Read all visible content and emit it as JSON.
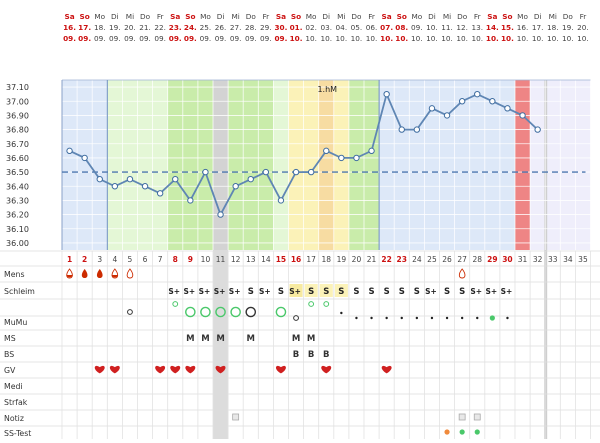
{
  "columns": [
    {
      "n": "1",
      "wd": "Sa",
      "d": "16.",
      "m": "09.",
      "we": true
    },
    {
      "n": "2",
      "wd": "So",
      "d": "17.",
      "m": "09.",
      "we": true
    },
    {
      "n": "3",
      "wd": "Mo",
      "d": "18.",
      "m": "09.",
      "we": false
    },
    {
      "n": "4",
      "wd": "Di",
      "d": "19.",
      "m": "09.",
      "we": false
    },
    {
      "n": "5",
      "wd": "Mi",
      "d": "20.",
      "m": "09.",
      "we": false
    },
    {
      "n": "6",
      "wd": "Do",
      "d": "21.",
      "m": "09.",
      "we": false
    },
    {
      "n": "7",
      "wd": "Fr",
      "d": "22.",
      "m": "09.",
      "we": false
    },
    {
      "n": "8",
      "wd": "Sa",
      "d": "23.",
      "m": "09.",
      "we": true
    },
    {
      "n": "9",
      "wd": "So",
      "d": "24.",
      "m": "09.",
      "we": true
    },
    {
      "n": "10",
      "wd": "Mo",
      "d": "25.",
      "m": "09.",
      "we": false
    },
    {
      "n": "11",
      "wd": "Di",
      "d": "26.",
      "m": "09.",
      "we": false
    },
    {
      "n": "12",
      "wd": "Mi",
      "d": "27.",
      "m": "09.",
      "we": false
    },
    {
      "n": "13",
      "wd": "Do",
      "d": "28.",
      "m": "09.",
      "we": false
    },
    {
      "n": "14",
      "wd": "Fr",
      "d": "29.",
      "m": "09.",
      "we": false
    },
    {
      "n": "15",
      "wd": "Sa",
      "d": "30.",
      "m": "09.",
      "we": true
    },
    {
      "n": "16",
      "wd": "So",
      "d": "01.",
      "m": "10.",
      "we": true
    },
    {
      "n": "17",
      "wd": "Mo",
      "d": "02.",
      "m": "10.",
      "we": false
    },
    {
      "n": "18",
      "wd": "Di",
      "d": "03.",
      "m": "10.",
      "we": false
    },
    {
      "n": "19",
      "wd": "Mi",
      "d": "04.",
      "m": "10.",
      "we": false
    },
    {
      "n": "20",
      "wd": "Do",
      "d": "05.",
      "m": "10.",
      "we": false
    },
    {
      "n": "21",
      "wd": "Fr",
      "d": "06.",
      "m": "10.",
      "we": false
    },
    {
      "n": "22",
      "wd": "Sa",
      "d": "07.",
      "m": "10.",
      "we": true
    },
    {
      "n": "23",
      "wd": "So",
      "d": "08.",
      "m": "10.",
      "we": true
    },
    {
      "n": "24",
      "wd": "Mo",
      "d": "09.",
      "m": "10.",
      "we": false
    },
    {
      "n": "25",
      "wd": "Di",
      "d": "10.",
      "m": "10.",
      "we": false
    },
    {
      "n": "26",
      "wd": "Mi",
      "d": "11.",
      "m": "10.",
      "we": false
    },
    {
      "n": "27",
      "wd": "Do",
      "d": "12.",
      "m": "10.",
      "we": false
    },
    {
      "n": "28",
      "wd": "Fr",
      "d": "13.",
      "m": "10.",
      "we": false
    },
    {
      "n": "29",
      "wd": "Sa",
      "d": "14.",
      "m": "10.",
      "we": true
    },
    {
      "n": "30",
      "wd": "So",
      "d": "15.",
      "m": "10.",
      "we": true
    },
    {
      "n": "31",
      "wd": "Mo",
      "d": "16.",
      "m": "10.",
      "we": false
    },
    {
      "n": "32",
      "wd": "Di",
      "d": "17.",
      "m": "10.",
      "we": false
    },
    {
      "n": "33",
      "wd": "Mi",
      "d": "18.",
      "m": "10.",
      "we": false
    },
    {
      "n": "34",
      "wd": "Do",
      "d": "19.",
      "m": "10.",
      "we": false
    },
    {
      "n": "35",
      "wd": "Fr",
      "d": "20.",
      "m": "10.",
      "we": false
    }
  ],
  "chart_data": {
    "type": "line",
    "title": "",
    "xlabel": "",
    "ylabel": "",
    "ylim": [
      35.95,
      37.15
    ],
    "y_ticks": [
      "37.10",
      "37.00",
      "36.90",
      "36.80",
      "36.70",
      "36.60",
      "36.50",
      "36.40",
      "36.30",
      "36.20",
      "36.10",
      "36.00"
    ],
    "x": [
      1,
      2,
      3,
      4,
      5,
      6,
      7,
      8,
      9,
      10,
      11,
      12,
      13,
      14,
      15,
      16,
      17,
      18,
      19,
      20,
      21,
      22,
      23,
      24,
      25,
      26,
      27,
      28,
      29,
      30,
      31,
      32
    ],
    "series": [
      {
        "values": [
          36.65,
          36.6,
          36.45,
          36.4,
          36.45,
          36.4,
          36.35,
          36.45,
          36.3,
          36.5,
          36.2,
          36.4,
          36.45,
          36.5,
          36.3,
          36.5,
          36.5,
          36.65,
          36.6,
          36.6,
          36.65,
          37.05,
          36.8,
          36.8,
          36.95,
          36.9,
          37.0,
          37.05,
          37.0,
          36.95,
          36.9,
          36.8
        ]
      }
    ],
    "coverline": 36.5,
    "annotation": "1.hM",
    "annotation_day": 18
  },
  "colors": {
    "weekend_red": "#cc1111",
    "weekday_gray": "#444444",
    "phase_blue": "#dde8f8",
    "phase_green_light": "#e4f7d6",
    "phase_green": "#c9ecaa",
    "phase_yellow": "#fbf2b8",
    "phase_orange": "#f7dca2",
    "phase_lavender": "#efeefb",
    "day_gray": "#dcdcdc",
    "period_red": "#ee8585",
    "line_blue": "#5f86b4",
    "coverline": "#4f79b0",
    "heart_red": "#d02020",
    "drop_red": "#cc2b00",
    "dot_green": "#4ac86a",
    "dot_orange": "#f08a3c"
  },
  "rows": {
    "labels": [
      "Mens",
      "Schleim",
      "",
      "MuMu",
      "MS",
      "BS",
      "GV",
      "Medi",
      "Strfak",
      "Notiz",
      "SS-Test"
    ]
  },
  "mens": [
    {
      "day": 1,
      "icon": "drop-half-icon"
    },
    {
      "day": 2,
      "icon": "drop-full-icon"
    },
    {
      "day": 3,
      "icon": "drop-full-icon"
    },
    {
      "day": 4,
      "icon": "drop-half-icon"
    },
    {
      "day": 5,
      "icon": "drop-outline-icon"
    },
    {
      "day": 27,
      "icon": "drop-outline-icon"
    }
  ],
  "schleim": [
    "",
    "",
    "",
    "",
    "",
    "",
    "",
    "S+",
    "S+",
    "S+",
    "S+",
    "S+",
    "S",
    "S+",
    "S",
    "S+",
    "S",
    "S",
    "S",
    "S",
    "S",
    "S",
    "S",
    "S",
    "S+",
    "S",
    "S",
    "S+",
    "S+",
    "S+",
    "",
    "",
    ""
  ],
  "mumu_upper": [
    {
      "day": 8,
      "icon": "circle-small-green-icon"
    },
    {
      "day": 9,
      "icon": "circle-large-green-icon"
    },
    {
      "day": 10,
      "icon": "circle-large-green-icon"
    },
    {
      "day": 11,
      "icon": "circle-large-green-icon"
    },
    {
      "day": 12,
      "icon": "circle-large-green-icon"
    },
    {
      "day": 13,
      "icon": "circle-large-black-icon"
    },
    {
      "day": 15,
      "icon": "circle-large-green-icon"
    },
    {
      "day": 17,
      "icon": "circle-small-green-icon"
    },
    {
      "day": 18,
      "icon": "circle-small-green-icon"
    },
    {
      "day": 5,
      "icon": "circle-small-black-icon"
    }
  ],
  "mumu_lower": [
    {
      "day": 16,
      "icon": "circle-small-black-icon"
    },
    {
      "day": 19,
      "icon": "dot-black-icon"
    },
    {
      "day": 20,
      "icon": "dot-black-icon"
    },
    {
      "day": 21,
      "icon": "dot-black-icon"
    },
    {
      "day": 22,
      "icon": "dot-black-icon"
    },
    {
      "day": 23,
      "icon": "dot-black-icon"
    },
    {
      "day": 24,
      "icon": "dot-black-icon"
    },
    {
      "day": 25,
      "icon": "dot-black-icon"
    },
    {
      "day": 26,
      "icon": "dot-black-icon"
    },
    {
      "day": 27,
      "icon": "dot-black-icon"
    },
    {
      "day": 28,
      "icon": "dot-black-icon"
    },
    {
      "day": 29,
      "icon": "dot-green-icon"
    },
    {
      "day": 30,
      "icon": "dot-black-icon"
    }
  ],
  "ms": [
    {
      "day": 9,
      "text": "M"
    },
    {
      "day": 10,
      "text": "M"
    },
    {
      "day": 11,
      "text": "M"
    },
    {
      "day": 13,
      "text": "M"
    },
    {
      "day": 16,
      "text": "M"
    },
    {
      "day": 17,
      "text": "M"
    }
  ],
  "bs": [
    {
      "day": 16,
      "text": "B"
    },
    {
      "day": 17,
      "text": "B"
    },
    {
      "day": 18,
      "text": "B"
    }
  ],
  "gv": [
    3,
    4,
    7,
    8,
    9,
    11,
    15,
    18,
    22
  ],
  "notiz": [
    12,
    27,
    28
  ],
  "sstest": [
    {
      "day": 26,
      "icon": "dot-orange-icon"
    },
    {
      "day": 27,
      "icon": "dot-green-icon"
    },
    {
      "day": 28,
      "icon": "dot-green-icon"
    }
  ]
}
